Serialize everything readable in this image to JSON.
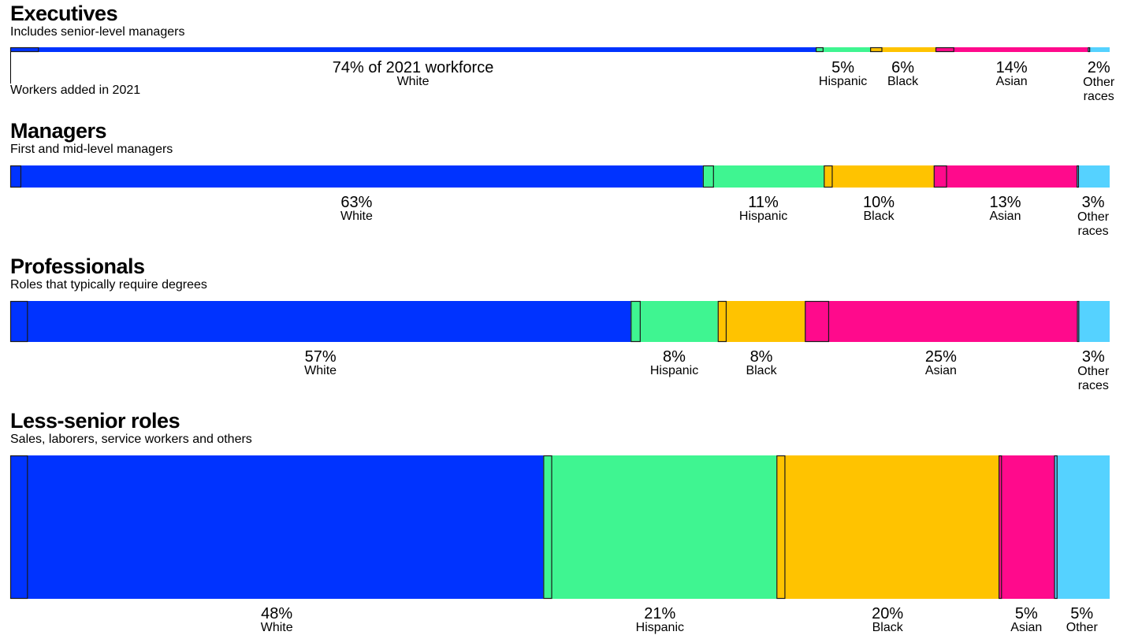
{
  "colors": {
    "White": "#0033ff",
    "Hispanic": "#3ff591",
    "Black": "#ffc300",
    "Asian": "#ff0a8c",
    "Other races": "#55d2ff"
  },
  "annotation": "Workers added in 2021",
  "chart_data": [
    {
      "type": "bar",
      "title": "Executives",
      "subtitle": "Includes senior-level managers",
      "categories": [
        "White",
        "Hispanic",
        "Black",
        "Asian",
        "Other races"
      ],
      "display_labels": [
        "White",
        "Hispanic",
        "Black",
        "Asian",
        "Other races"
      ],
      "values": [
        74,
        5,
        6,
        14,
        2
      ],
      "value_labels": [
        "74% of 2021 workforce",
        "5%",
        "6%",
        "14%",
        "2%"
      ],
      "added_in_2021": [
        2.6,
        0.7,
        1.1,
        1.7,
        0.2
      ]
    },
    {
      "type": "bar",
      "title": "Managers",
      "subtitle": "First and mid-level managers",
      "categories": [
        "White",
        "Hispanic",
        "Black",
        "Asian",
        "Other races"
      ],
      "display_labels": [
        "White",
        "Hispanic",
        "Black",
        "Asian",
        "Other races"
      ],
      "values": [
        63,
        11,
        10,
        13,
        3
      ],
      "value_labels": [
        "63%",
        "11%",
        "10%",
        "13%",
        "3%"
      ],
      "added_in_2021": [
        1.0,
        1.0,
        0.8,
        1.2,
        0.2
      ]
    },
    {
      "type": "bar",
      "title": "Professionals",
      "subtitle": "Roles that typically require degrees",
      "categories": [
        "White",
        "Hispanic",
        "Black",
        "Asian",
        "Other races"
      ],
      "display_labels": [
        "White",
        "Hispanic",
        "Black",
        "Asian",
        "Other races"
      ],
      "values": [
        57,
        8,
        8,
        25,
        3
      ],
      "value_labels": [
        "57%",
        "8%",
        "8%",
        "25%",
        "3%"
      ],
      "added_in_2021": [
        1.6,
        0.9,
        0.8,
        2.2,
        0.2
      ]
    },
    {
      "type": "bar",
      "title": "Less-senior roles",
      "subtitle": "Sales, laborers, service workers and others",
      "categories": [
        "White",
        "Hispanic",
        "Black",
        "Asian",
        "Other races"
      ],
      "display_labels": [
        "White",
        "Hispanic",
        "Black",
        "Asian",
        "Other"
      ],
      "values": [
        48,
        21,
        20,
        5,
        5
      ],
      "value_labels": [
        "48%",
        "21%",
        "20%",
        "5%",
        "5%"
      ],
      "added_in_2021": [
        1.6,
        0.8,
        0.8,
        0.3,
        0.3
      ]
    }
  ]
}
